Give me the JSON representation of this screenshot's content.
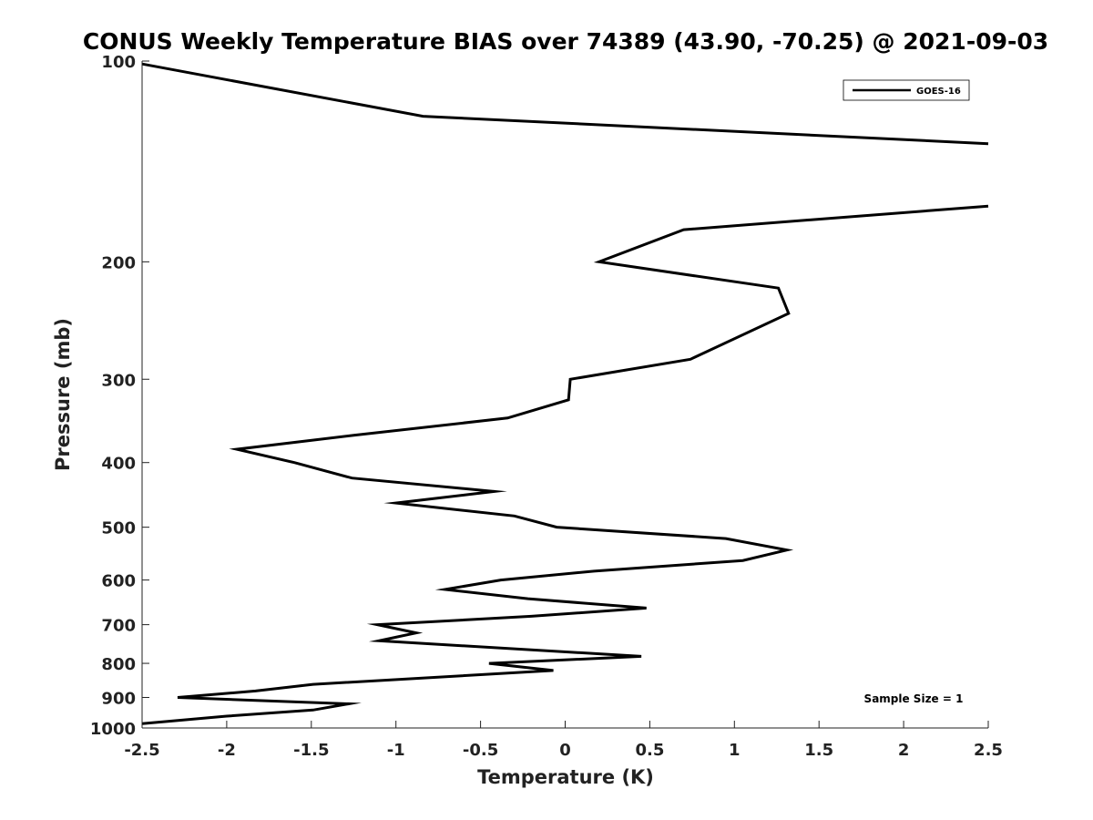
{
  "chart_data": {
    "type": "line",
    "title": "CONUS Weekly Temperature BIAS over 74389 (43.90, -70.25) @ 2021-09-03",
    "xlabel": "Temperature (K)",
    "ylabel": "Pressure (mb)",
    "xlim": [
      -2.5,
      2.5
    ],
    "ylim": [
      100,
      1000
    ],
    "y_scale": "log",
    "y_reversed": true,
    "grid": false,
    "x_ticks": [
      "-2.5",
      "-2",
      "-1.5",
      "-1",
      "-0.5",
      "0",
      "0.5",
      "1",
      "1.5",
      "2",
      "2.5"
    ],
    "x_tick_values": [
      -2.5,
      -2,
      -1.5,
      -1,
      -0.5,
      0,
      0.5,
      1,
      1.5,
      2,
      2.5
    ],
    "y_ticks": [
      "100",
      "200",
      "300",
      "400",
      "500",
      "600",
      "700",
      "800",
      "900",
      "1000"
    ],
    "y_tick_values": [
      100,
      200,
      300,
      400,
      500,
      600,
      700,
      800,
      900,
      1000
    ],
    "legend": {
      "placement": "top-right",
      "entries": [
        "GOES-16"
      ]
    },
    "annotation": "Sample Size = 1",
    "series": [
      {
        "name": "GOES-16",
        "color": "#000000",
        "segments": [
          [
            {
              "x": -2.5,
              "p": 101
            },
            {
              "x": -0.84,
              "p": 121
            },
            {
              "x": 2.5,
              "p": 133
            }
          ],
          [
            {
              "x": 2.5,
              "p": 165
            },
            {
              "x": 0.7,
              "p": 179
            },
            {
              "x": 0.2,
              "p": 200
            },
            {
              "x": 1.26,
              "p": 219
            },
            {
              "x": 1.32,
              "p": 239
            },
            {
              "x": 0.74,
              "p": 280
            },
            {
              "x": 0.03,
              "p": 300
            },
            {
              "x": 0.02,
              "p": 322
            },
            {
              "x": -0.34,
              "p": 343
            },
            {
              "x": -1.25,
              "p": 364
            },
            {
              "x": -1.94,
              "p": 382
            },
            {
              "x": -1.6,
              "p": 400
            },
            {
              "x": -1.26,
              "p": 422
            },
            {
              "x": -0.42,
              "p": 442
            },
            {
              "x": -1.0,
              "p": 460
            },
            {
              "x": -0.3,
              "p": 481
            },
            {
              "x": -0.05,
              "p": 500
            },
            {
              "x": 0.95,
              "p": 520
            },
            {
              "x": 1.31,
              "p": 541
            },
            {
              "x": 1.05,
              "p": 561
            },
            {
              "x": 0.17,
              "p": 582
            },
            {
              "x": -0.38,
              "p": 600
            },
            {
              "x": -0.71,
              "p": 620
            },
            {
              "x": -0.22,
              "p": 640
            },
            {
              "x": 0.48,
              "p": 661
            },
            {
              "x": -0.2,
              "p": 680
            },
            {
              "x": -1.11,
              "p": 700
            },
            {
              "x": -0.88,
              "p": 720
            },
            {
              "x": -1.1,
              "p": 740
            },
            {
              "x": 0.45,
              "p": 781
            },
            {
              "x": -0.45,
              "p": 800
            },
            {
              "x": -0.07,
              "p": 820
            },
            {
              "x": -1.49,
              "p": 860
            },
            {
              "x": -1.83,
              "p": 880
            },
            {
              "x": -2.29,
              "p": 900
            },
            {
              "x": -1.28,
              "p": 920
            },
            {
              "x": -1.49,
              "p": 940
            },
            {
              "x": -2.0,
              "p": 960
            },
            {
              "x": -2.5,
              "p": 985
            }
          ]
        ]
      }
    ]
  }
}
